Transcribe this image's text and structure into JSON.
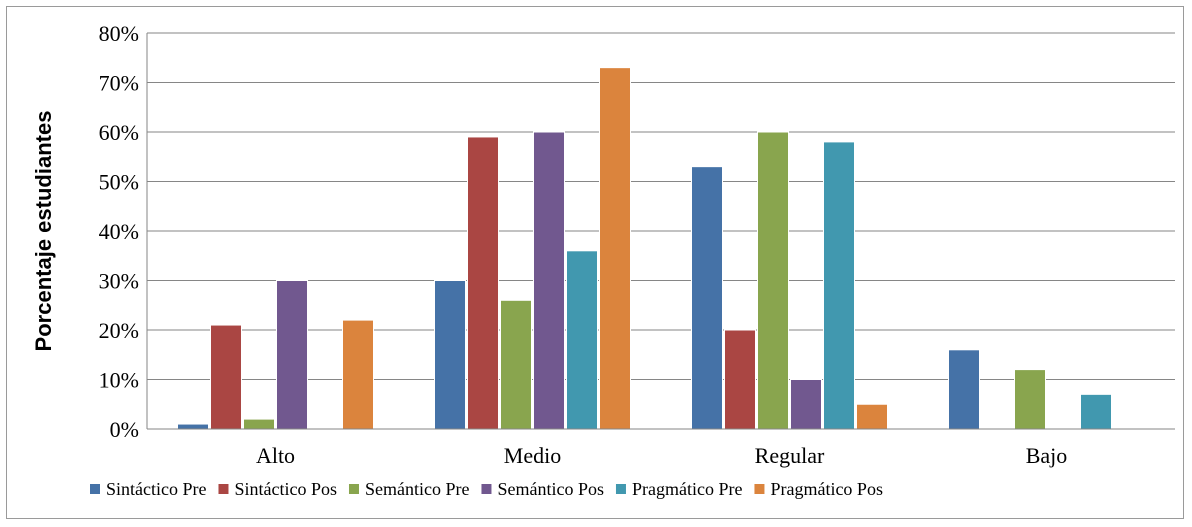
{
  "chart_data": {
    "type": "bar",
    "title": "",
    "xlabel": "",
    "ylabel": "Porcentaje estudiantes",
    "ylim": [
      0,
      80
    ],
    "yticks": [
      0,
      10,
      20,
      30,
      40,
      50,
      60,
      70,
      80
    ],
    "ytick_labels": [
      "0%",
      "10%",
      "20%",
      "30%",
      "40%",
      "50%",
      "60%",
      "70%",
      "80%"
    ],
    "grid": true,
    "legend_position": "bottom",
    "categories": [
      "Alto",
      "Medio",
      "Regular",
      "Bajo"
    ],
    "series": [
      {
        "name": "Sintáctico Pre",
        "color": "#4572A7",
        "values": [
          1,
          30,
          53,
          16
        ]
      },
      {
        "name": "Sintáctico Pos",
        "color": "#AA4643",
        "values": [
          21,
          59,
          20,
          0
        ]
      },
      {
        "name": "Semántico Pre",
        "color": "#89A54E",
        "values": [
          2,
          26,
          60,
          12
        ]
      },
      {
        "name": "Semántico Pos",
        "color": "#71588F",
        "values": [
          30,
          60,
          10,
          0
        ]
      },
      {
        "name": "Pragmático Pre",
        "color": "#4198AF",
        "values": [
          0,
          36,
          58,
          7
        ]
      },
      {
        "name": "Pragmático Pos",
        "color": "#DB843D",
        "values": [
          22,
          73,
          5,
          0
        ]
      }
    ]
  }
}
